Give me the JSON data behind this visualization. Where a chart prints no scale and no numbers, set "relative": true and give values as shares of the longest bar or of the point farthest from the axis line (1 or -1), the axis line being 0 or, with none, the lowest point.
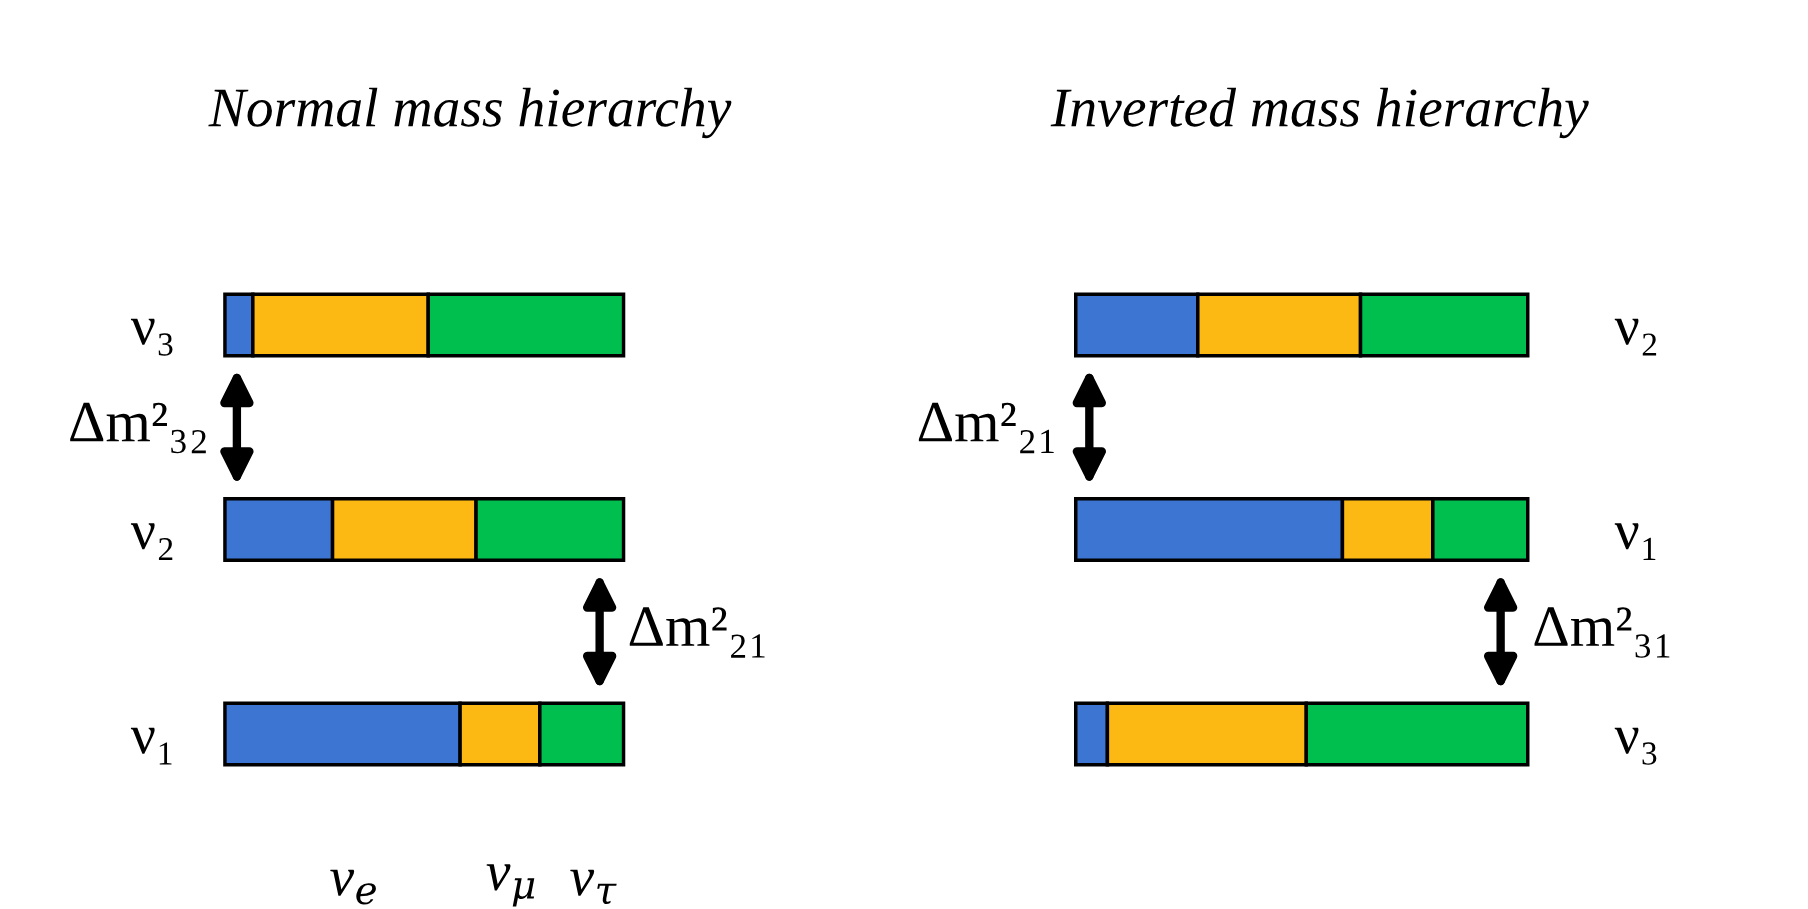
{
  "chart_data": [
    {
      "type": "bar",
      "title": "Normal mass hierarchy",
      "orientation": "horizontal",
      "stacked": true,
      "relative": true,
      "legend": false,
      "grid": false,
      "categories": [
        "ν₃",
        "ν₂",
        "ν₁"
      ],
      "series": [
        {
          "name": "ν$_{e}$",
          "color": "#3d75d3",
          "values": [
            0.07,
            0.27,
            0.59
          ]
        },
        {
          "name": "ν$_{μ}$",
          "color": "#fdb913",
          "values": [
            0.44,
            0.36,
            0.2
          ]
        },
        {
          "name": "ν$_{τ}$",
          "color": "#00bf4f",
          "values": [
            0.49,
            0.37,
            0.21
          ]
        }
      ],
      "annotations": [
        "Δm²₃₂",
        "Δm²₂₁"
      ]
    },
    {
      "type": "bar",
      "title": "Inverted mass hierarchy",
      "orientation": "horizontal",
      "stacked": true,
      "relative": true,
      "legend": false,
      "grid": false,
      "categories": [
        "ν₂",
        "ν₁",
        "ν₃"
      ],
      "series": [
        {
          "color": "#3d75d3",
          "values": [
            0.27,
            0.59,
            0.07
          ]
        },
        {
          "color": "#fdb913",
          "values": [
            0.36,
            0.2,
            0.44
          ]
        },
        {
          "color": "#00bf4f",
          "values": [
            0.37,
            0.21,
            0.49
          ]
        }
      ],
      "annotations": [
        "Δm²₂₁",
        "Δm²₃₁"
      ]
    }
  ]
}
